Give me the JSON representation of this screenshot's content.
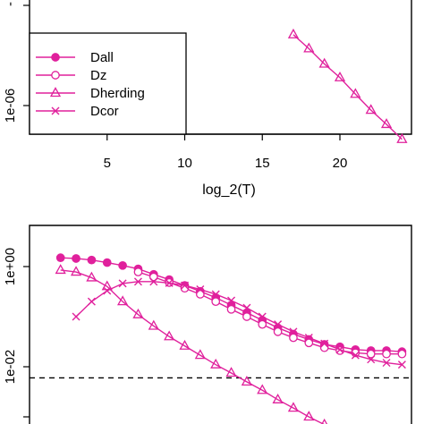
{
  "chart_data": [
    {
      "type": "line",
      "xlabel": "log_2(T)",
      "ylabel": "",
      "x_ticks": [
        5,
        10,
        15,
        20
      ],
      "y_ticks": [
        "1e-06"
      ],
      "y_log": true,
      "color": "#e0209c",
      "legend_position": "bottom-left",
      "series": [
        {
          "name": "Dall",
          "marker": "filled-circle",
          "x": [],
          "y": []
        },
        {
          "name": "Dz",
          "marker": "open-circle",
          "x": [],
          "y": []
        },
        {
          "name": "Dherding",
          "marker": "open-triangle",
          "x": [
            17,
            18,
            19,
            20,
            21,
            22,
            23,
            24
          ],
          "y": [
            5.1e-06,
            3.7e-06,
            2.6e-06,
            1.9e-06,
            1.3e-06,
            9e-07,
            6.5e-07,
            4.6e-07
          ]
        },
        {
          "name": "Dcor",
          "marker": "cross",
          "x": [],
          "y": []
        }
      ]
    },
    {
      "type": "line",
      "xlabel": "",
      "ylabel": "",
      "y_ticks": [
        "1e+00",
        "1e-02"
      ],
      "y_log": true,
      "color": "#e0209c",
      "reference_line": {
        "y": 0.006,
        "style": "dashed"
      },
      "series": [
        {
          "marker": "filled-circle",
          "x": [
            2,
            3,
            4,
            5,
            6,
            7,
            8,
            9,
            10,
            11,
            12,
            13,
            14,
            15,
            16,
            17,
            18,
            19,
            20,
            21,
            22,
            23,
            24
          ],
          "y": [
            1.5,
            1.45,
            1.35,
            1.2,
            1.05,
            0.9,
            0.7,
            0.55,
            0.42,
            0.32,
            0.24,
            0.17,
            0.12,
            0.085,
            0.06,
            0.045,
            0.035,
            0.028,
            0.025,
            0.022,
            0.021,
            0.021,
            0.02
          ]
        },
        {
          "marker": "open-circle",
          "x": [
            7,
            8,
            9,
            10,
            11,
            12,
            13,
            14,
            15,
            16,
            17,
            18,
            19,
            20,
            21,
            22,
            23,
            24
          ],
          "y": [
            0.78,
            0.62,
            0.48,
            0.37,
            0.28,
            0.2,
            0.14,
            0.1,
            0.07,
            0.05,
            0.038,
            0.03,
            0.024,
            0.021,
            0.019,
            0.018,
            0.018,
            0.018
          ]
        },
        {
          "marker": "open-triangle",
          "x": [
            2,
            3,
            4,
            5,
            6,
            7,
            8,
            9,
            10,
            11,
            12,
            13,
            14,
            15,
            16,
            17,
            18,
            19,
            20,
            21
          ],
          "y": [
            0.85,
            0.78,
            0.6,
            0.4,
            0.2,
            0.11,
            0.065,
            0.04,
            0.026,
            0.017,
            0.011,
            0.0075,
            0.005,
            0.0034,
            0.0022,
            0.0015,
            0.001,
            0.0007,
            0.0005,
            0.00035
          ]
        },
        {
          "marker": "cross",
          "x": [
            3,
            4,
            5,
            6,
            7,
            8,
            9,
            10,
            11,
            12,
            13,
            14,
            15,
            16,
            17,
            18,
            19,
            20,
            21,
            22,
            23,
            24
          ],
          "y": [
            0.1,
            0.2,
            0.33,
            0.46,
            0.5,
            0.5,
            0.47,
            0.42,
            0.35,
            0.28,
            0.21,
            0.15,
            0.1,
            0.07,
            0.05,
            0.038,
            0.029,
            0.022,
            0.017,
            0.014,
            0.012,
            0.011
          ]
        }
      ]
    }
  ]
}
